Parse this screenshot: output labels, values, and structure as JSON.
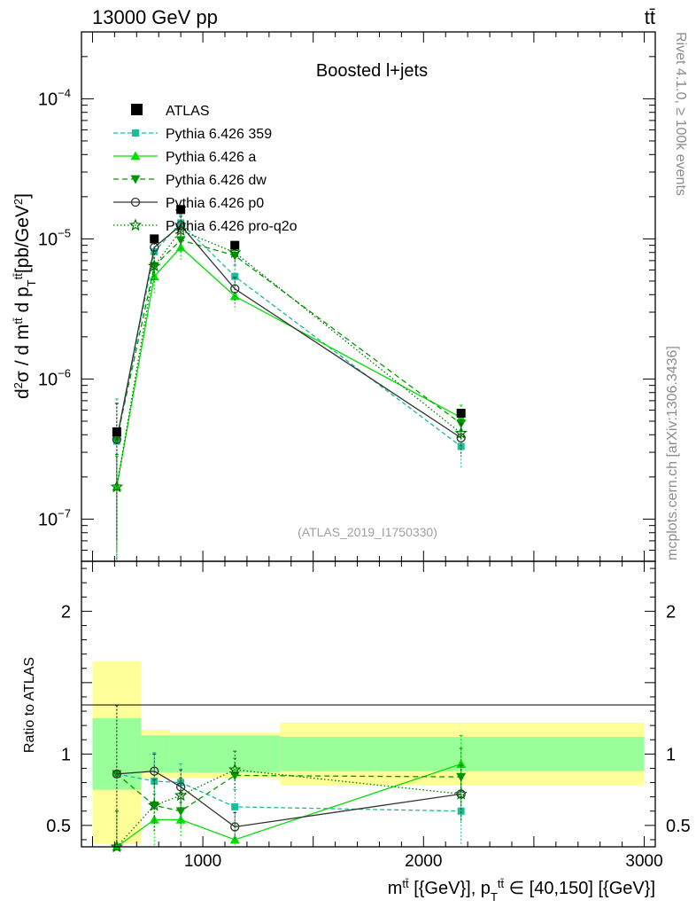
{
  "header": {
    "left": "13000 GeV pp",
    "right": "tt̄"
  },
  "side_labels": {
    "rivet": "Rivet 4.1.0, ≥ 100k events",
    "source": "mcplots.cern.ch [arXiv:1306.3436]"
  },
  "ratio_ylabel": "Ratio to ATLAS",
  "chart_data": {
    "type": "line",
    "title": "Boosted l+jets",
    "analysis_tag": "(ATLAS_2019_I1750330)",
    "xlabel": "m^{tt̄} [{GeV}], p_T^{tt̄} ∈ [40,150] [{GeV}]",
    "ylabel": "d²σ / d m^{tt̄} d p_T^{tt̄} [pb/GeV²]",
    "ylabel_parts": {
      "d": "d",
      "two": "2",
      "sigma": "σ / d m",
      "tt": "tt̄",
      "dp": " d p",
      "T": "T",
      "unit": "[pb/GeV",
      "close": "]"
    },
    "xlabel_parts": {
      "m": "m",
      "tt": "tt̄",
      "unit1": " [{GeV}], p",
      "T": "T",
      "tt2": "tt̄",
      "range": " ∈ [40,150] [{GeV}]"
    },
    "xlim": [
      450,
      3050
    ],
    "ylim_main": [
      5e-08,
      0.0003
    ],
    "yscale_main": "log",
    "ylim_ratio": [
      0.35,
      2.35
    ],
    "x_ticks": [
      1000,
      2000,
      3000
    ],
    "x_tick_labels": [
      "1000",
      "2000",
      "3000"
    ],
    "y_ticks_main": [
      1e-07,
      1e-06,
      1e-05,
      0.0001
    ],
    "y_tick_labels_main": [
      {
        "base": "10",
        "exp": "−7"
      },
      {
        "base": "10",
        "exp": "−6"
      },
      {
        "base": "10",
        "exp": "−5"
      },
      {
        "base": "10",
        "exp": "−4"
      }
    ],
    "y_ticks_ratio": [
      0.5,
      1,
      2
    ],
    "y_tick_labels_ratio": [
      "0.5",
      "1",
      "2"
    ],
    "bins": [
      {
        "x": 610,
        "lo": 500,
        "hi": 720
      },
      {
        "x": 780,
        "lo": 720,
        "hi": 850
      },
      {
        "x": 900,
        "lo": 850,
        "hi": 1000
      },
      {
        "x": 1145,
        "lo": 1000,
        "hi": 1350
      },
      {
        "x": 2170,
        "lo": 1350,
        "hi": 3000
      }
    ],
    "data": {
      "name": "ATLAS",
      "x": [
        610,
        780,
        900,
        1145,
        2170
      ],
      "y": [
        4.2e-07,
        1e-05,
        1.62e-05,
        9e-06,
        5.7e-07
      ]
    },
    "bands": {
      "inner_color": "#99ff99",
      "outer_color": "#ffff99",
      "inner": [
        [
          0.75,
          1.25
        ],
        [
          0.87,
          1.13
        ],
        [
          0.87,
          1.13
        ],
        [
          0.87,
          1.13
        ],
        [
          0.88,
          1.12
        ]
      ],
      "outer": [
        [
          0.37,
          1.65
        ],
        [
          0.83,
          1.17
        ],
        [
          0.83,
          1.15
        ],
        [
          0.83,
          1.15
        ],
        [
          0.78,
          1.22
        ]
      ]
    },
    "series": [
      {
        "name": "Pythia 6.426 359",
        "color": "#1abc9c",
        "dash": "5,3",
        "marker": "square-filled",
        "x": [
          610,
          780,
          900,
          1145,
          2170
        ],
        "y": [
          3.6e-07,
          8.1e-06,
          1.3e-05,
          5.4e-06,
          3.3e-07
        ],
        "yerr": [
          3.6e-07,
          1.8e-06,
          2e-06,
          1.1e-06,
          1e-07
        ],
        "ratio": [
          0.86,
          0.81,
          0.8,
          0.63,
          0.6
        ],
        "ratio_err": [
          0.48,
          0.2,
          0.13,
          0.12,
          0.23
        ]
      },
      {
        "name": "Pythia 6.426 a",
        "color": "#00e000",
        "dash": "",
        "marker": "triangle-up-filled",
        "x": [
          610,
          780,
          900,
          1145,
          2170
        ],
        "y": [
          1.7e-07,
          5.4e-06,
          8.7e-06,
          3.9e-06,
          5.3e-07
        ],
        "yerr": [
          1.1e-07,
          1.3e-06,
          1.6e-06,
          8e-07,
          1.2e-07
        ],
        "ratio": [
          0.35,
          0.54,
          0.54,
          0.4,
          0.93
        ],
        "ratio_err": [
          0.25,
          0.18,
          0.12,
          0.1,
          0.2
        ]
      },
      {
        "name": "Pythia 6.426 dw",
        "color": "#009900",
        "dash": "6,4",
        "marker": "triangle-down-filled",
        "x": [
          610,
          780,
          900,
          1145,
          2170
        ],
        "y": [
          3.7e-07,
          6.4e-06,
          9.8e-06,
          7.6e-06,
          4.8e-07
        ],
        "yerr": [
          3e-07,
          1.5e-06,
          1.8e-06,
          1.3e-06,
          1.1e-07
        ],
        "ratio": [
          0.86,
          0.64,
          0.6,
          0.85,
          0.84
        ],
        "ratio_err": [
          0.48,
          0.18,
          0.12,
          0.12,
          0.2
        ]
      },
      {
        "name": "Pythia 6.426 p0",
        "color": "#333333",
        "dash": "",
        "marker": "circle-open",
        "x": [
          610,
          780,
          900,
          1145,
          2170
        ],
        "y": [
          3.7e-07,
          8.7e-06,
          1.25e-05,
          4.4e-06,
          3.8e-07
        ],
        "yerr": [
          3e-07,
          1.8e-06,
          2e-06,
          9e-07,
          1e-07
        ],
        "ratio": [
          0.86,
          0.88,
          0.77,
          0.49,
          0.72
        ],
        "ratio_err": [
          0.48,
          0.12,
          0.12,
          0.1,
          0.2
        ]
      },
      {
        "name": "Pythia 6.426 pro-q2o",
        "color": "#007700",
        "dash": "1.5,2.5",
        "marker": "star-open",
        "x": [
          610,
          780,
          900,
          1145,
          2170
        ],
        "y": [
          1.7e-07,
          6.4e-06,
          1.15e-05,
          8e-06,
          4.1e-07
        ],
        "yerr": [
          1.2e-07,
          1.5e-06,
          1.9e-06,
          1.4e-06,
          1e-07
        ],
        "ratio": [
          0.35,
          0.64,
          0.71,
          0.89,
          0.72
        ],
        "ratio_err": [
          0.25,
          0.18,
          0.12,
          0.13,
          0.2
        ]
      }
    ]
  }
}
